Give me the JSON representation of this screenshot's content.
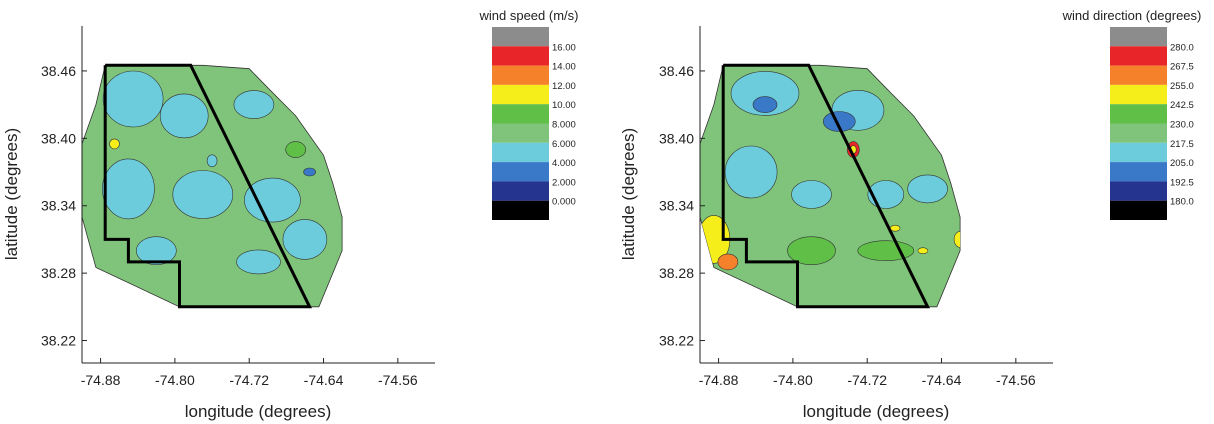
{
  "chart_data": [
    {
      "type": "heatmap",
      "subtype": "filled-contour-map",
      "xlabel": "longitude (degrees)",
      "ylabel": "latitude (degrees)",
      "xlim": [
        -74.9,
        -74.52
      ],
      "ylim": [
        38.2,
        38.5
      ],
      "xticks": [
        "-74.88",
        "-74.80",
        "-74.72",
        "-74.64",
        "-74.56"
      ],
      "yticks": [
        "38.46",
        "38.40",
        "38.34",
        "38.28",
        "38.22"
      ],
      "colorbar_title": "wind speed (m/s)",
      "colorbar_levels": [
        "16.00",
        "14.00",
        "12.00",
        "10.00",
        "8.000",
        "6.000",
        "4.000",
        "2.000",
        "0.000"
      ],
      "colorbar_colors": [
        "#8c8c8c",
        "#e8262a",
        "#f5822a",
        "#f5ee1a",
        "#5fbf47",
        "#7fc47a",
        "#6cccdc",
        "#3a78c8",
        "#25348f",
        "#000000"
      ],
      "dominant_range": "6.000 to 8.000",
      "grid": false,
      "legend_position": "right"
    },
    {
      "type": "heatmap",
      "subtype": "filled-contour-map",
      "xlabel": "longitude (degrees)",
      "ylabel": "latitude (degrees)",
      "xlim": [
        -74.9,
        -74.52
      ],
      "ylim": [
        38.2,
        38.5
      ],
      "xticks": [
        "-74.88",
        "-74.80",
        "-74.72",
        "-74.64",
        "-74.56"
      ],
      "yticks": [
        "38.46",
        "38.40",
        "38.34",
        "38.28",
        "38.22"
      ],
      "colorbar_title": "wind direction (degrees)",
      "colorbar_levels": [
        "280.0",
        "267.5",
        "255.0",
        "242.5",
        "230.0",
        "217.5",
        "205.0",
        "192.5",
        "180.0"
      ],
      "colorbar_colors": [
        "#8c8c8c",
        "#e8262a",
        "#f5822a",
        "#f5ee1a",
        "#5fbf47",
        "#7fc47a",
        "#6cccdc",
        "#3a78c8",
        "#25348f",
        "#000000"
      ],
      "dominant_range": "217.5 to 230.0",
      "grid": false,
      "legend_position": "right"
    }
  ],
  "lease_outline": {
    "lon": [
      -74.875,
      -74.783,
      -74.655,
      -74.795,
      -74.795,
      -74.85,
      -74.85,
      -74.875,
      -74.875
    ],
    "lat": [
      38.465,
      38.465,
      38.25,
      38.25,
      38.29,
      38.29,
      38.31,
      38.31,
      38.465
    ]
  },
  "data_region": {
    "lon": [
      -74.875,
      -74.77,
      -74.72,
      -74.7,
      -74.67,
      -74.64,
      -74.63,
      -74.62,
      -74.62,
      -74.645,
      -74.795,
      -74.885,
      -74.9,
      -74.9,
      -74.885
    ],
    "lat": [
      38.465,
      38.465,
      38.462,
      38.445,
      38.42,
      38.385,
      38.36,
      38.33,
      38.3,
      38.25,
      38.25,
      38.285,
      38.33,
      38.395,
      38.43
    ]
  }
}
